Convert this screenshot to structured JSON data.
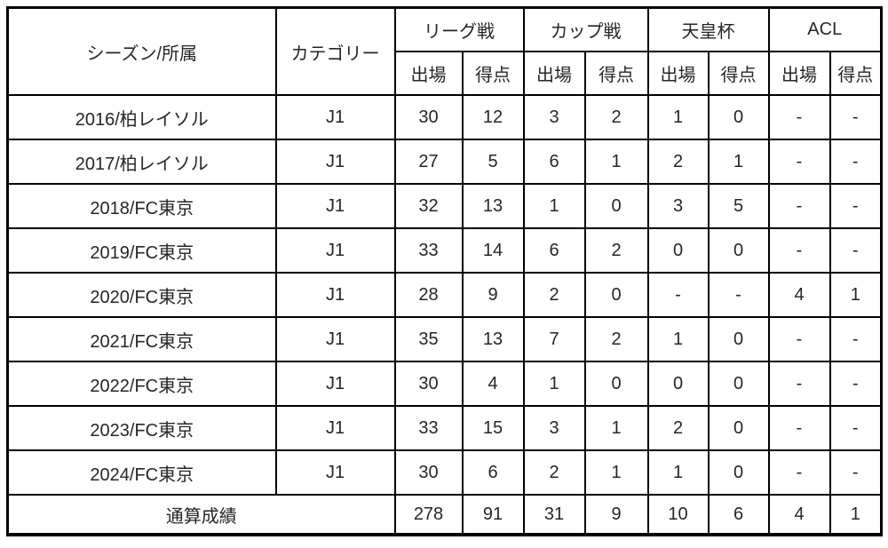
{
  "table": {
    "header": {
      "season_label": "シーズン/所属",
      "category_label": "カテゴリー",
      "groups": [
        "リーグ戦",
        "カップ戦",
        "天皇杯",
        "ACL"
      ],
      "sub_appearances": "出場",
      "sub_goals": "得点"
    },
    "rows": [
      {
        "season": "2016/柏レイソル",
        "category": "J1",
        "stats": [
          "30",
          "12",
          "3",
          "2",
          "1",
          "0",
          "-",
          "-"
        ]
      },
      {
        "season": "2017/柏レイソル",
        "category": "J1",
        "stats": [
          "27",
          "5",
          "6",
          "1",
          "2",
          "1",
          "-",
          "-"
        ]
      },
      {
        "season": "2018/FC東京",
        "category": "J1",
        "stats": [
          "32",
          "13",
          "1",
          "0",
          "3",
          "5",
          "-",
          "-"
        ]
      },
      {
        "season": "2019/FC東京",
        "category": "J1",
        "stats": [
          "33",
          "14",
          "6",
          "2",
          "0",
          "0",
          "-",
          "-"
        ]
      },
      {
        "season": "2020/FC東京",
        "category": "J1",
        "stats": [
          "28",
          "9",
          "2",
          "0",
          "-",
          "-",
          "4",
          "1"
        ]
      },
      {
        "season": "2021/FC東京",
        "category": "J1",
        "stats": [
          "35",
          "13",
          "7",
          "2",
          "1",
          "0",
          "-",
          "-"
        ]
      },
      {
        "season": "2022/FC東京",
        "category": "J1",
        "stats": [
          "30",
          "4",
          "1",
          "0",
          "0",
          "0",
          "-",
          "-"
        ]
      },
      {
        "season": "2023/FC東京",
        "category": "J1",
        "stats": [
          "33",
          "15",
          "3",
          "1",
          "2",
          "0",
          "-",
          "-"
        ]
      },
      {
        "season": "2024/FC東京",
        "category": "J1",
        "stats": [
          "30",
          "6",
          "2",
          "1",
          "1",
          "0",
          "-",
          "-"
        ]
      }
    ],
    "total": {
      "label": "通算成績",
      "stats": [
        "278",
        "91",
        "31",
        "9",
        "10",
        "6",
        "4",
        "1"
      ]
    }
  },
  "colors": {
    "border": "#000000",
    "text": "#262626",
    "background": "#ffffff"
  }
}
